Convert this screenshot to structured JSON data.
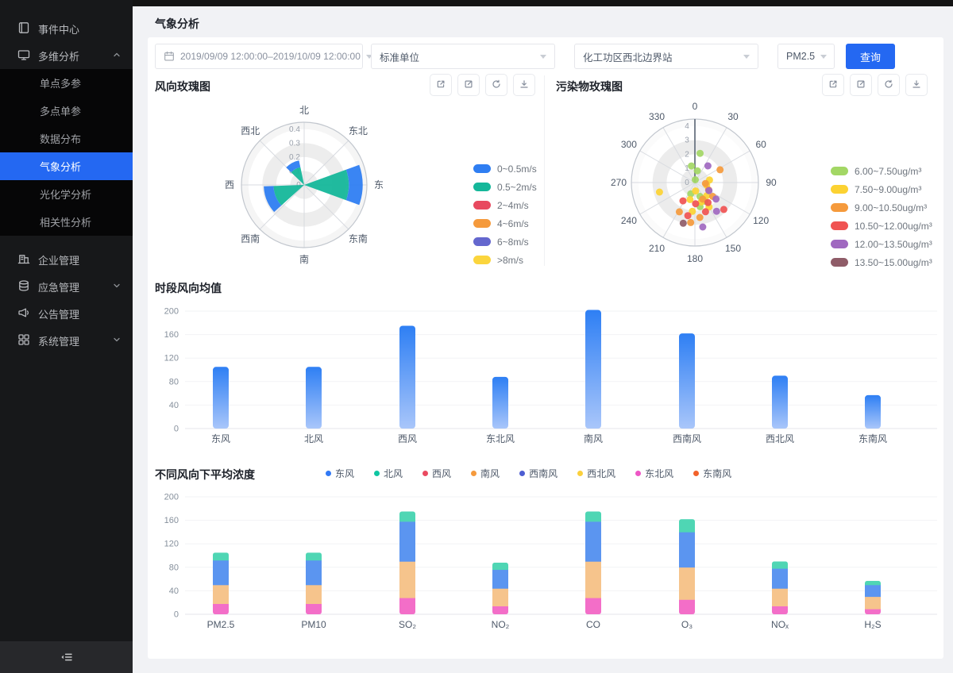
{
  "sidebar": {
    "items": [
      {
        "label": "事件中心",
        "icon": "journal-icon"
      },
      {
        "label": "多维分析",
        "icon": "monitor-icon",
        "expanded": true,
        "children": [
          {
            "label": "单点多参"
          },
          {
            "label": "多点单参"
          },
          {
            "label": "数据分布"
          },
          {
            "label": "气象分析",
            "active": true
          },
          {
            "label": "光化学分析"
          },
          {
            "label": "相关性分析"
          }
        ]
      },
      {
        "label": "企业管理",
        "icon": "building-icon"
      },
      {
        "label": "应急管理",
        "icon": "database-icon",
        "collapsible": true
      },
      {
        "label": "公告管理",
        "icon": "announcement-icon"
      },
      {
        "label": "系统管理",
        "icon": "grid-icon",
        "collapsible": true
      }
    ]
  },
  "header": {
    "title": "气象分析"
  },
  "filters": {
    "date_range": "2019/09/09 12:00:00–2019/10/09 12:00:00",
    "unit": "标准单位",
    "station": "化工功区西北边界站",
    "pollutant": "PM2.5",
    "query_label": "查询"
  },
  "panel_actions": [
    "external-link-icon",
    "edit-icon",
    "refresh-icon",
    "download-icon"
  ],
  "chart_data": [
    {
      "type": "wind-rose",
      "title": "风向玫瑰图",
      "direction_labels": [
        "北",
        "东北",
        "东",
        "东南",
        "南",
        "西南",
        "西",
        "西北"
      ],
      "radial_ticks": [
        "0",
        "0.1",
        "0.2",
        "0.3",
        "0.4"
      ],
      "rmax": 0.45,
      "legend": [
        {
          "label": "0~0.5m/s",
          "color": "#2f7ef2"
        },
        {
          "label": "0.5~2m/s",
          "color": "#15b79a"
        },
        {
          "label": "2~4m/s",
          "color": "#e8495f"
        },
        {
          "label": "4~6m/s",
          "color": "#f59a3c"
        },
        {
          "label": "6~8m/s",
          "color": "#6467ce"
        },
        {
          "label": ">8m/s",
          "color": "#fbd53d"
        }
      ],
      "petals": [
        {
          "angle": 90,
          "span": 40,
          "segments": [
            {
              "bin": 1,
              "r0": 0,
              "r1": 0.32
            },
            {
              "bin": 0,
              "r0": 0.32,
              "r1": 0.42
            }
          ]
        },
        {
          "angle": 248,
          "span": 40,
          "segments": [
            {
              "bin": 1,
              "r0": 0,
              "r1": 0.22
            },
            {
              "bin": 0,
              "r0": 0.22,
              "r1": 0.29
            }
          ]
        },
        {
          "angle": 331,
          "span": 34,
          "segments": [
            {
              "bin": 1,
              "r0": 0,
              "r1": 0.13
            },
            {
              "bin": 0,
              "r0": 0.13,
              "r1": 0.18
            }
          ]
        }
      ]
    },
    {
      "type": "polar-scatter",
      "title": "污染物玫瑰图",
      "angle_labels": [
        "0",
        "30",
        "60",
        "90",
        "120",
        "150",
        "180",
        "210",
        "240",
        "270",
        "300",
        "330"
      ],
      "radial_ticks": [
        "0",
        "1",
        "2",
        "3",
        "4"
      ],
      "rmax": 4.5,
      "legend": [
        {
          "label": "6.00~7.50ug/m³",
          "color": "#a3d765"
        },
        {
          "label": "7.50~9.00ug/m³",
          "color": "#fcd232"
        },
        {
          "label": "9.00~10.50ug/m³",
          "color": "#f59a3c"
        },
        {
          "label": "10.50~12.00ug/m³",
          "color": "#f05352"
        },
        {
          "label": "12.00~13.50ug/m³",
          "color": "#a068c0"
        },
        {
          "label": "13.50~15.00ug/m³",
          "color": "#8f5c68"
        }
      ],
      "points": [
        [
          10,
          2.1,
          0
        ],
        [
          348,
          1.2,
          0
        ],
        [
          12,
          0.85,
          0
        ],
        [
          8,
          0.2,
          0
        ],
        [
          200,
          0.85,
          0
        ],
        [
          160,
          1.05,
          0
        ],
        [
          152,
          1.5,
          0
        ],
        [
          168,
          1.75,
          0
        ],
        [
          255,
          2.6,
          1
        ],
        [
          80,
          1.05,
          1
        ],
        [
          102,
          0.85,
          1
        ],
        [
          138,
          1.25,
          1
        ],
        [
          150,
          2.0,
          1
        ],
        [
          185,
          2.05,
          1
        ],
        [
          196,
          1.25,
          1
        ],
        [
          162,
          1.45,
          1
        ],
        [
          175,
          0.6,
          1
        ],
        [
          63,
          2.0,
          2
        ],
        [
          95,
          0.75,
          2
        ],
        [
          118,
          1.1,
          2
        ],
        [
          128,
          1.6,
          2
        ],
        [
          186,
          2.85,
          2
        ],
        [
          208,
          2.35,
          2
        ],
        [
          155,
          1.3,
          2
        ],
        [
          172,
          2.5,
          2
        ],
        [
          133,
          2.8,
          3
        ],
        [
          147,
          1.7,
          3
        ],
        [
          178,
          1.5,
          3
        ],
        [
          192,
          2.4,
          3
        ],
        [
          213,
          1.55,
          3
        ],
        [
          160,
          2.2,
          3
        ],
        [
          38,
          1.5,
          4
        ],
        [
          128,
          1.9,
          4
        ],
        [
          143,
          2.55,
          4
        ],
        [
          170,
          3.2,
          4
        ],
        [
          120,
          1.15,
          4
        ],
        [
          196,
          3.0,
          5
        ]
      ]
    },
    {
      "type": "bar",
      "title": "时段风向均值",
      "categories": [
        "东风",
        "北风",
        "西风",
        "东北风",
        "南风",
        "西南风",
        "西北风",
        "东南风"
      ],
      "values": [
        105,
        105,
        175,
        88,
        202,
        162,
        90,
        57
      ],
      "yticks": [
        0,
        40,
        80,
        120,
        160,
        200
      ],
      "ylim": [
        0,
        200
      ],
      "bar_gradient": [
        "#2e7ff4",
        "#a9c6fa"
      ]
    },
    {
      "type": "stacked-bar",
      "title": "不同风向下平均浓度",
      "categories": [
        "PM2.5",
        "PM10",
        "SO₂",
        "NO₂",
        "CO",
        "O₃",
        "NOₓ",
        "H₂S"
      ],
      "legend": [
        {
          "label": "东风",
          "color": "#3179f5"
        },
        {
          "label": "北风",
          "color": "#0fc6a2"
        },
        {
          "label": "西风",
          "color": "#ea4a60"
        },
        {
          "label": "南风",
          "color": "#f59a3d"
        },
        {
          "label": "西南风",
          "color": "#4d5ed2"
        },
        {
          "label": "西北风",
          "color": "#fbd03c"
        },
        {
          "label": "东北风",
          "color": "#ee56c5"
        },
        {
          "label": "东南风",
          "color": "#f2622b"
        }
      ],
      "series": [
        {
          "name": "东北风",
          "color": "#f36ec8",
          "values": [
            18,
            18,
            28,
            14,
            28,
            25,
            14,
            9
          ]
        },
        {
          "name": "南风",
          "color": "#f6c48c",
          "values": [
            32,
            32,
            62,
            30,
            62,
            55,
            30,
            21
          ]
        },
        {
          "name": "东风",
          "color": "#5b95f0",
          "values": [
            42,
            42,
            68,
            32,
            68,
            60,
            34,
            20
          ]
        },
        {
          "name": "北风",
          "color": "#4fd6b4",
          "values": [
            13,
            13,
            17,
            12,
            17,
            22,
            12,
            7
          ]
        }
      ],
      "yticks": [
        0,
        40,
        80,
        120,
        160,
        200
      ],
      "ylim": [
        0,
        200
      ]
    }
  ]
}
